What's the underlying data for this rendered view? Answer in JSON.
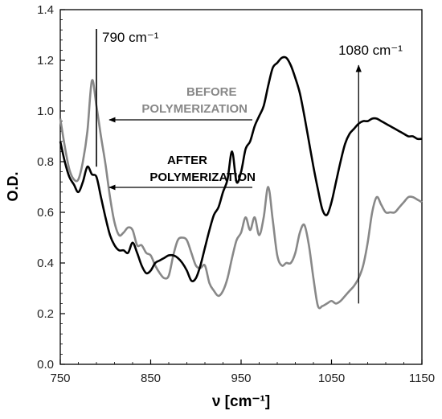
{
  "chart_data": {
    "type": "line",
    "title": "",
    "xlabel": "ν [cm⁻¹]",
    "ylabel": "O.D.",
    "xlim": [
      750,
      1150
    ],
    "ylim": [
      0,
      1.4
    ],
    "grid": false,
    "x_ticks": [
      {
        "value": 750,
        "label": "750"
      },
      {
        "value": 850,
        "label": "850"
      },
      {
        "value": 950,
        "label": "950"
      },
      {
        "value": 1050,
        "label": "1050"
      },
      {
        "value": 1150,
        "label": "1150"
      }
    ],
    "y_ticks": [
      {
        "value": 0,
        "label": "0.0"
      },
      {
        "value": 0.2,
        "label": "0.2"
      },
      {
        "value": 0.4,
        "label": "0.4"
      },
      {
        "value": 0.6,
        "label": "0.6"
      },
      {
        "value": 0.8,
        "label": "0.8"
      },
      {
        "value": 1.0,
        "label": "1.0"
      },
      {
        "value": 1.2,
        "label": "1.2"
      },
      {
        "value": 1.4,
        "label": "1.4"
      }
    ],
    "series": [
      {
        "name": "BEFORE POLYMERIZATION",
        "color": "#888888",
        "x": [
          750,
          755,
          760,
          765,
          770,
          775,
          780,
          785,
          790,
          795,
          800,
          805,
          810,
          815,
          820,
          825,
          830,
          835,
          840,
          845,
          850,
          855,
          860,
          865,
          870,
          875,
          880,
          885,
          890,
          895,
          900,
          905,
          910,
          915,
          920,
          925,
          930,
          935,
          940,
          945,
          950,
          955,
          960,
          965,
          970,
          975,
          980,
          985,
          990,
          995,
          1000,
          1005,
          1010,
          1015,
          1020,
          1025,
          1030,
          1035,
          1040,
          1045,
          1050,
          1055,
          1060,
          1065,
          1070,
          1075,
          1080,
          1085,
          1090,
          1095,
          1100,
          1105,
          1110,
          1115,
          1120,
          1125,
          1130,
          1135,
          1140,
          1145,
          1150
        ],
        "y": [
          0.97,
          0.86,
          0.77,
          0.73,
          0.73,
          0.8,
          0.92,
          1.12,
          1.02,
          0.9,
          0.79,
          0.66,
          0.56,
          0.51,
          0.52,
          0.54,
          0.53,
          0.47,
          0.47,
          0.44,
          0.43,
          0.39,
          0.36,
          0.34,
          0.35,
          0.43,
          0.49,
          0.5,
          0.49,
          0.44,
          0.39,
          0.38,
          0.39,
          0.32,
          0.29,
          0.27,
          0.29,
          0.34,
          0.42,
          0.49,
          0.52,
          0.58,
          0.53,
          0.58,
          0.51,
          0.58,
          0.7,
          0.57,
          0.43,
          0.39,
          0.4,
          0.4,
          0.44,
          0.52,
          0.55,
          0.47,
          0.34,
          0.23,
          0.23,
          0.24,
          0.25,
          0.24,
          0.25,
          0.27,
          0.29,
          0.31,
          0.34,
          0.39,
          0.48,
          0.6,
          0.66,
          0.63,
          0.6,
          0.6,
          0.6,
          0.62,
          0.64,
          0.66,
          0.66,
          0.65,
          0.64
        ]
      },
      {
        "name": "AFTER POLYMERIZATION",
        "color": "#000000",
        "x": [
          750,
          755,
          760,
          765,
          770,
          775,
          780,
          785,
          790,
          795,
          800,
          805,
          810,
          815,
          820,
          825,
          830,
          835,
          840,
          845,
          850,
          855,
          860,
          865,
          870,
          875,
          880,
          885,
          890,
          895,
          900,
          905,
          910,
          915,
          920,
          925,
          930,
          935,
          940,
          945,
          950,
          955,
          960,
          965,
          970,
          975,
          980,
          985,
          990,
          995,
          1000,
          1005,
          1010,
          1015,
          1020,
          1025,
          1030,
          1035,
          1040,
          1045,
          1050,
          1055,
          1060,
          1065,
          1070,
          1075,
          1080,
          1085,
          1090,
          1095,
          1100,
          1105,
          1110,
          1115,
          1120,
          1125,
          1130,
          1135,
          1140,
          1145,
          1150
        ],
        "y": [
          0.88,
          0.8,
          0.74,
          0.71,
          0.68,
          0.72,
          0.78,
          0.75,
          0.74,
          0.66,
          0.58,
          0.51,
          0.47,
          0.45,
          0.45,
          0.44,
          0.48,
          0.44,
          0.39,
          0.36,
          0.37,
          0.4,
          0.41,
          0.42,
          0.43,
          0.43,
          0.42,
          0.4,
          0.37,
          0.33,
          0.34,
          0.39,
          0.46,
          0.53,
          0.59,
          0.62,
          0.68,
          0.73,
          0.84,
          0.72,
          0.76,
          0.85,
          0.88,
          0.94,
          0.98,
          1.02,
          1.1,
          1.17,
          1.19,
          1.21,
          1.21,
          1.18,
          1.13,
          1.07,
          0.98,
          0.88,
          0.78,
          0.69,
          0.61,
          0.59,
          0.64,
          0.72,
          0.8,
          0.87,
          0.91,
          0.93,
          0.95,
          0.96,
          0.96,
          0.97,
          0.97,
          0.96,
          0.95,
          0.94,
          0.93,
          0.92,
          0.91,
          0.9,
          0.9,
          0.89,
          0.89
        ]
      }
    ],
    "annotations": [
      {
        "text": "790 cm⁻¹"
      },
      {
        "text": "1080 cm⁻¹"
      },
      {
        "text": "BEFORE"
      },
      {
        "text": "POLYMERIZATION"
      },
      {
        "text": "AFTER"
      },
      {
        "text": "POLYMERIZATION"
      }
    ]
  }
}
